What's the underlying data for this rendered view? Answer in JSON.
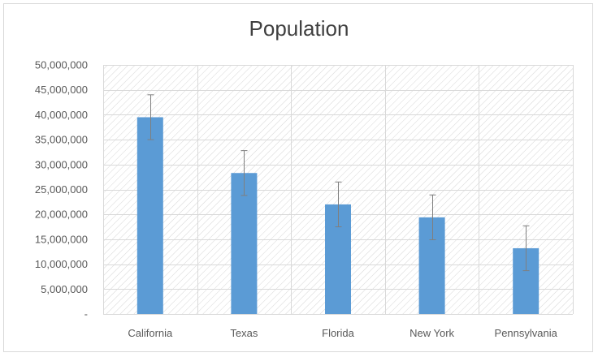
{
  "chart_data": {
    "type": "bar",
    "title": "Population",
    "categories": [
      "California",
      "Texas",
      "Florida",
      "New York",
      "Pennsylvania"
    ],
    "values": [
      39500000,
      28300000,
      22000000,
      19400000,
      13200000
    ],
    "error": [
      4500000,
      4500000,
      4500000,
      4500000,
      4500000
    ],
    "ylim": [
      0,
      50000000
    ],
    "yticks": [
      0,
      5000000,
      10000000,
      15000000,
      20000000,
      25000000,
      30000000,
      35000000,
      40000000,
      45000000,
      50000000
    ],
    "ytick_labels": [
      "-",
      "5,000,000",
      "10,000,000",
      "15,000,000",
      "20,000,000",
      "25,000,000",
      "30,000,000",
      "35,000,000",
      "40,000,000",
      "45,000,000",
      "50,000,000"
    ],
    "xlabel": "",
    "ylabel": "",
    "grid": true,
    "legend": "none",
    "colors": {
      "bar": "#5b9bd5",
      "grid": "#d9d9d9",
      "error": "#7f7f7f",
      "hatch": "#d6d6d6"
    }
  }
}
